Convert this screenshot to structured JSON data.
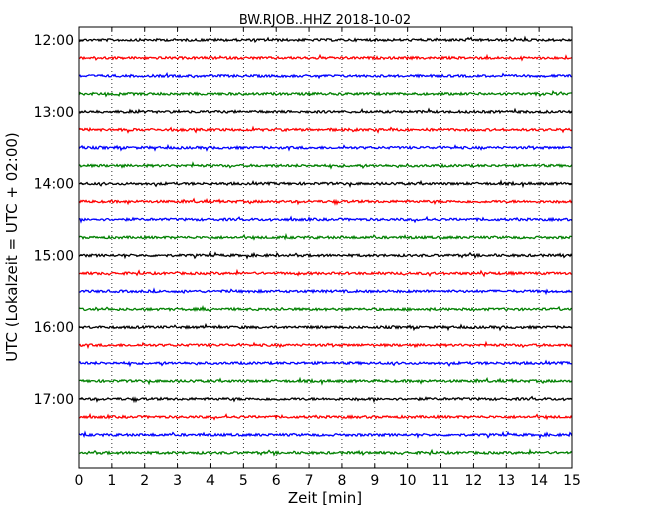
{
  "chart_data": {
    "type": "line",
    "title": "BW.RJOB..HHZ 2018-10-02",
    "xlabel": "Zeit  [min]",
    "ylabel": "UTC (Lokalzeit = UTC + 02:00)",
    "xlim": [
      0,
      15
    ],
    "xticks": [
      "0",
      "1",
      "2",
      "3",
      "4",
      "5",
      "6",
      "7",
      "8",
      "9",
      "10",
      "11",
      "12",
      "13",
      "14",
      "15"
    ],
    "yticks": [
      "12:00",
      "13:00",
      "14:00",
      "15:00",
      "16:00",
      "17:00"
    ],
    "grid": "vertical dotted",
    "trace_start": "12:00",
    "trace_interval_minutes": 15,
    "trace_count": 24,
    "trace_colors": [
      "#000000",
      "#ff0000",
      "#0000ff",
      "#008000"
    ]
  }
}
